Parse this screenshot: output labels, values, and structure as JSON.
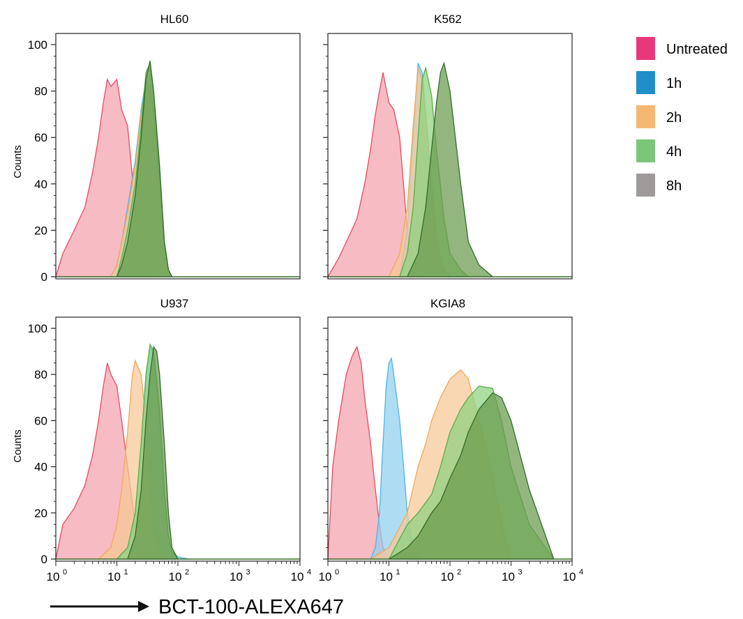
{
  "figure": {
    "x_axis_caption": "BCT-100-ALEXA647",
    "y_axis_label": "Counts"
  },
  "legend": {
    "position": "right",
    "items": [
      {
        "label": "Untreated",
        "color": "#e8387c"
      },
      {
        "label": "1h",
        "color": "#1f8ec9"
      },
      {
        "label": "2h",
        "color": "#f4b873"
      },
      {
        "label": "4h",
        "color": "#7cc67a"
      },
      {
        "label": "8h",
        "color": "#9e9a9a"
      }
    ]
  },
  "chart_data": [
    {
      "type": "area",
      "title": "HL60",
      "xscale": "log",
      "xlim": [
        1,
        10000
      ],
      "ylabel": "Counts",
      "ylim": [
        0,
        100
      ],
      "y_ticks": [
        0,
        20,
        40,
        60,
        80,
        100
      ],
      "x_ticks": [],
      "series": [
        {
          "name": "Untreated",
          "color": "#e84a5f",
          "fill": "#f4a1ac",
          "x": [
            1,
            1.3,
            2,
            3,
            4,
            5,
            6,
            7,
            8,
            10,
            12,
            15,
            20,
            25,
            30,
            40
          ],
          "y": [
            0,
            10,
            20,
            30,
            45,
            60,
            75,
            85,
            82,
            85,
            72,
            65,
            30,
            10,
            2,
            0
          ]
        },
        {
          "name": "1h",
          "color": "#4bb4e6",
          "fill": "#8fd0ee",
          "x": [
            8,
            10,
            12,
            15,
            20,
            25,
            30,
            35,
            40,
            50,
            60,
            70,
            80
          ],
          "y": [
            0,
            5,
            15,
            30,
            50,
            72,
            85,
            82,
            70,
            40,
            15,
            3,
            0
          ]
        },
        {
          "name": "2h",
          "color": "#f2a65a",
          "fill": "#f7c896",
          "x": [
            8,
            10,
            12,
            15,
            20,
            25,
            30,
            35,
            40,
            50,
            60,
            70,
            80
          ],
          "y": [
            0,
            5,
            15,
            28,
            48,
            70,
            82,
            80,
            68,
            40,
            15,
            3,
            0
          ]
        },
        {
          "name": "4h",
          "color": "#5aab45",
          "fill": "#8ed17e",
          "x": [
            10,
            12,
            15,
            20,
            25,
            30,
            35,
            40,
            50,
            60,
            70,
            80
          ],
          "y": [
            0,
            8,
            20,
            40,
            65,
            88,
            92,
            78,
            45,
            15,
            3,
            0
          ]
        },
        {
          "name": "8h",
          "color": "#2f6b2a",
          "fill": "#6a9a4d",
          "x": [
            10,
            12,
            15,
            20,
            25,
            30,
            35,
            40,
            50,
            60,
            70,
            80
          ],
          "y": [
            0,
            5,
            15,
            35,
            60,
            85,
            93,
            80,
            48,
            15,
            3,
            0
          ]
        }
      ]
    },
    {
      "type": "area",
      "title": "K562",
      "xscale": "log",
      "xlim": [
        1,
        10000
      ],
      "ylabel": "",
      "ylim": [
        0,
        100
      ],
      "y_ticks": [],
      "x_ticks": [],
      "series": [
        {
          "name": "Untreated",
          "color": "#e84a5f",
          "fill": "#f4a1ac",
          "x": [
            1,
            1.5,
            2,
            3,
            4,
            5,
            6,
            7,
            8,
            10,
            12,
            15,
            20,
            25,
            30
          ],
          "y": [
            0,
            8,
            15,
            25,
            40,
            55,
            70,
            80,
            88,
            75,
            72,
            60,
            20,
            5,
            0
          ]
        },
        {
          "name": "1h",
          "color": "#4bb4e6",
          "fill": "#8fd0ee",
          "x": [
            15,
            20,
            25,
            30,
            35,
            40,
            50,
            60,
            80,
            100
          ],
          "y": [
            0,
            20,
            60,
            92,
            88,
            70,
            40,
            15,
            3,
            0
          ]
        },
        {
          "name": "2h",
          "color": "#f2a65a",
          "fill": "#f7c896",
          "x": [
            10,
            15,
            20,
            25,
            30,
            35,
            40,
            50,
            60,
            80,
            100
          ],
          "y": [
            0,
            10,
            30,
            65,
            90,
            85,
            70,
            40,
            15,
            3,
            0
          ]
        },
        {
          "name": "4h",
          "color": "#5aab45",
          "fill": "#8ed17e",
          "x": [
            15,
            20,
            25,
            30,
            35,
            40,
            50,
            60,
            80,
            100,
            150,
            200
          ],
          "y": [
            0,
            10,
            30,
            60,
            85,
            90,
            78,
            55,
            25,
            10,
            3,
            0
          ]
        },
        {
          "name": "8h",
          "color": "#2f6b2a",
          "fill": "#6a9a4d",
          "x": [
            20,
            30,
            40,
            50,
            60,
            70,
            80,
            100,
            150,
            200,
            300,
            500
          ],
          "y": [
            0,
            10,
            30,
            55,
            75,
            88,
            92,
            80,
            40,
            15,
            5,
            0
          ]
        }
      ]
    },
    {
      "type": "area",
      "title": "U937",
      "xscale": "log",
      "xlim": [
        1,
        10000
      ],
      "xlabel": "",
      "ylabel": "Counts",
      "ylim": [
        0,
        100
      ],
      "y_ticks": [
        0,
        20,
        40,
        60,
        80,
        100
      ],
      "x_ticks": [
        "10",
        "10",
        "10",
        "10",
        "10"
      ],
      "x_tick_exponents": [
        "0",
        "1",
        "2",
        "3",
        "4"
      ],
      "series": [
        {
          "name": "Untreated",
          "color": "#e84a5f",
          "fill": "#f4a1ac",
          "x": [
            1,
            1.3,
            2,
            3,
            4,
            5,
            6,
            7,
            8,
            10,
            12,
            15,
            20,
            25,
            30
          ],
          "y": [
            0,
            15,
            22,
            32,
            45,
            60,
            75,
            85,
            80,
            75,
            60,
            40,
            15,
            5,
            0
          ]
        },
        {
          "name": "1h",
          "color": "#4bb4e6",
          "fill": "#8fd0ee",
          "x": [
            10,
            15,
            20,
            25,
            30,
            35,
            40,
            50,
            60,
            70,
            80,
            100,
            150
          ],
          "y": [
            0,
            5,
            20,
            50,
            80,
            92,
            88,
            60,
            25,
            10,
            3,
            1,
            0
          ]
        },
        {
          "name": "2h",
          "color": "#f2a65a",
          "fill": "#f7c896",
          "x": [
            5,
            8,
            10,
            12,
            15,
            18,
            20,
            25,
            30,
            35,
            40,
            50,
            60
          ],
          "y": [
            0,
            5,
            15,
            30,
            55,
            80,
            86,
            80,
            60,
            35,
            15,
            3,
            0
          ]
        },
        {
          "name": "4h",
          "color": "#5aab45",
          "fill": "#8ed17e",
          "x": [
            10,
            15,
            20,
            25,
            30,
            35,
            40,
            50,
            60,
            70,
            80,
            100
          ],
          "y": [
            0,
            5,
            20,
            50,
            80,
            93,
            90,
            65,
            30,
            10,
            3,
            0
          ]
        },
        {
          "name": "8h",
          "color": "#2f6b2a",
          "fill": "#6a9a4d",
          "x": [
            15,
            20,
            25,
            30,
            35,
            40,
            45,
            50,
            60,
            70,
            80,
            100
          ],
          "y": [
            0,
            10,
            30,
            60,
            80,
            92,
            90,
            80,
            50,
            20,
            5,
            0
          ]
        }
      ]
    },
    {
      "type": "area",
      "title": "KGIA8",
      "xscale": "log",
      "xlim": [
        1,
        10000
      ],
      "xlabel": "",
      "ylabel": "",
      "ylim": [
        0,
        100
      ],
      "y_ticks": [],
      "x_ticks": [
        "10",
        "10",
        "10",
        "10",
        "10"
      ],
      "x_tick_exponents": [
        "0",
        "1",
        "2",
        "3",
        "4"
      ],
      "series": [
        {
          "name": "Untreated",
          "color": "#e84a5f",
          "fill": "#f4a1ac",
          "x": [
            1,
            1.2,
            1.5,
            2,
            2.5,
            3,
            3.5,
            4,
            5,
            6,
            7,
            8,
            10
          ],
          "y": [
            0,
            40,
            60,
            80,
            88,
            92,
            85,
            70,
            50,
            30,
            15,
            5,
            0
          ]
        },
        {
          "name": "1h",
          "color": "#4bb4e6",
          "fill": "#8fd0ee",
          "x": [
            5,
            6,
            7,
            8,
            9,
            10,
            11,
            12,
            15,
            18,
            20,
            25,
            30
          ],
          "y": [
            0,
            5,
            20,
            50,
            75,
            85,
            87,
            80,
            60,
            35,
            20,
            5,
            0
          ]
        },
        {
          "name": "2h",
          "color": "#f2a65a",
          "fill": "#f7c896",
          "x": [
            5,
            10,
            20,
            30,
            40,
            50,
            70,
            100,
            150,
            200,
            300,
            500,
            700,
            1000
          ],
          "y": [
            0,
            5,
            20,
            40,
            50,
            60,
            70,
            78,
            82,
            78,
            60,
            35,
            15,
            0
          ]
        },
        {
          "name": "4h",
          "color": "#5aab45",
          "fill": "#8ed17e",
          "x": [
            10,
            20,
            30,
            50,
            70,
            100,
            150,
            200,
            300,
            500,
            700,
            1000,
            2000,
            5000
          ],
          "y": [
            0,
            15,
            20,
            28,
            40,
            55,
            65,
            70,
            75,
            74,
            60,
            40,
            15,
            0
          ]
        },
        {
          "name": "8h",
          "color": "#2f6b2a",
          "fill": "#6a9a4d",
          "x": [
            10,
            20,
            30,
            50,
            70,
            100,
            150,
            200,
            300,
            500,
            700,
            1000,
            2000,
            5000
          ],
          "y": [
            0,
            5,
            10,
            20,
            25,
            35,
            45,
            55,
            65,
            72,
            70,
            60,
            30,
            0
          ]
        }
      ]
    }
  ]
}
